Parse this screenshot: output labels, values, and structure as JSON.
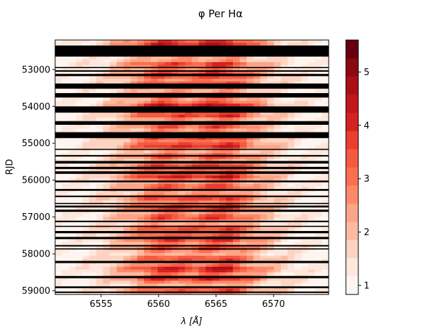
{
  "chart_data": {
    "type": "heatmap",
    "title": "φ Per Hα",
    "xlabel": "λ [Å]",
    "ylabel": "RJD",
    "xlim": [
      6551,
      6574.8
    ],
    "ylim": [
      59100,
      52200
    ],
    "xticks": [
      6555,
      6560,
      6565,
      6570
    ],
    "yticks": [
      53000,
      54000,
      55000,
      56000,
      57000,
      58000,
      59000
    ],
    "colorbar": {
      "min": 0.83,
      "max": 5.6,
      "ticks": [
        1,
        2,
        3,
        4,
        5
      ],
      "levels": [
        "#fff5f0",
        "#fee8dd",
        "#fdd4c2",
        "#fcbba1",
        "#fca487",
        "#fc8a6a",
        "#fb6e4e",
        "#f45a41",
        "#e83f2f",
        "#d42121",
        "#c1161b",
        "#a90f15",
        "#8a0a12",
        "#67000d"
      ]
    },
    "profile": {
      "wavelength": [
        6551,
        6553,
        6555,
        6557,
        6558.5,
        6560,
        6561.5,
        6563,
        6564.5,
        6566,
        6567.5,
        6569,
        6571,
        6573,
        6574.8
      ],
      "baseline_intensity": [
        1.0,
        1.2,
        1.6,
        2.3,
        3.0,
        3.7,
        3.6,
        3.3,
        3.8,
        3.9,
        3.1,
        2.3,
        1.6,
        1.2,
        1.0
      ]
    },
    "gap_bands_rjd": [
      [
        52350,
        52650
      ],
      [
        52930,
        52960
      ],
      [
        53020,
        53060
      ],
      [
        53120,
        53180
      ],
      [
        53380,
        53520
      ],
      [
        53640,
        53760
      ],
      [
        54000,
        54170
      ],
      [
        54400,
        54500
      ],
      [
        54700,
        54860
      ],
      [
        55150,
        55180
      ],
      [
        55320,
        55360
      ],
      [
        55480,
        55550
      ],
      [
        55640,
        55700
      ],
      [
        55760,
        55830
      ],
      [
        56010,
        56060
      ],
      [
        56240,
        56290
      ],
      [
        56420,
        56460
      ],
      [
        56620,
        56650
      ],
      [
        56690,
        56740
      ],
      [
        56800,
        56860
      ],
      [
        57100,
        57140
      ],
      [
        57240,
        57270
      ],
      [
        57380,
        57440
      ],
      [
        57540,
        57600
      ],
      [
        57760,
        57800
      ],
      [
        57850,
        57880
      ],
      [
        58190,
        58250
      ],
      [
        58600,
        58660
      ],
      [
        58880,
        58930
      ],
      [
        59020,
        59060
      ]
    ]
  }
}
